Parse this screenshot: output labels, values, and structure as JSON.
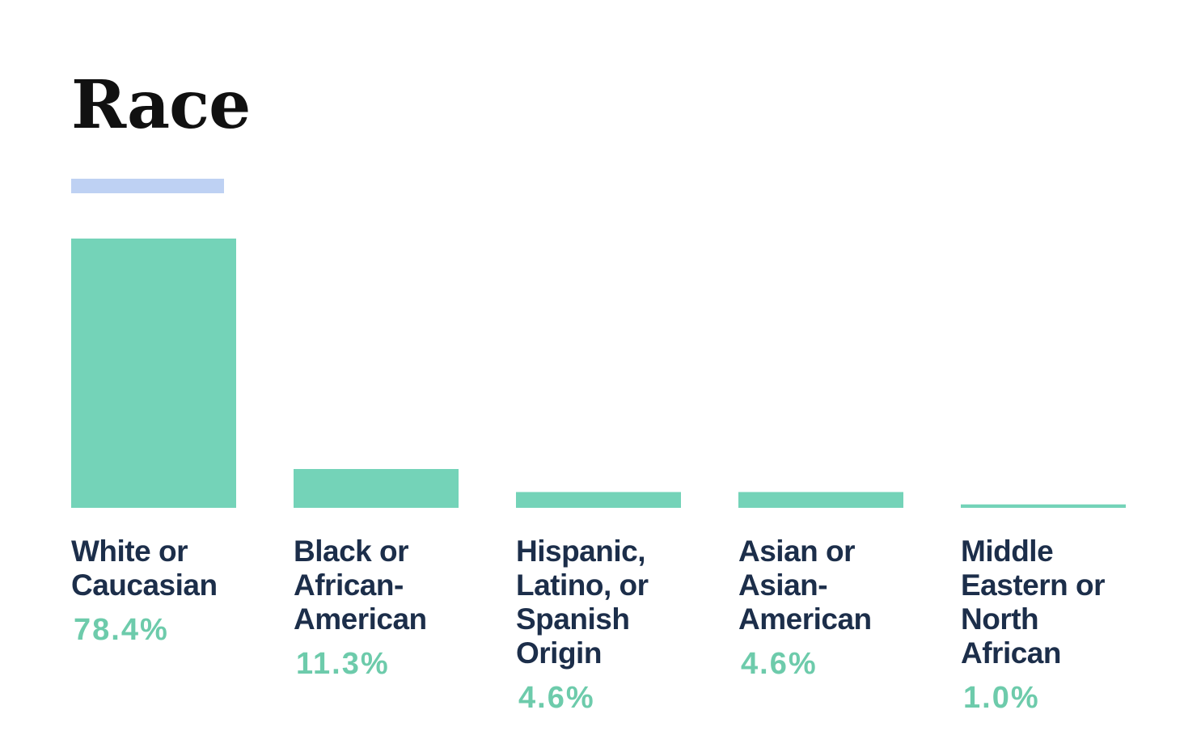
{
  "colors": {
    "bar": "#74d3b8",
    "accent": "#bed1f3",
    "label": "#1c2e4a",
    "value": "#6dcbab"
  },
  "chart_data": {
    "type": "bar",
    "title": "Race",
    "categories": [
      "White or\nCaucasian",
      "Black or\nAfrican-\nAmerican",
      "Hispanic,\nLatino, or\nSpanish\nOrigin",
      "Asian or\nAsian-\nAmerican",
      "Middle\nEastern or\nNorth\nAfrican"
    ],
    "values": [
      78.4,
      11.3,
      4.6,
      4.6,
      1.0
    ],
    "value_labels": [
      "78.4%",
      "11.3%",
      "4.6%",
      "4.6%",
      "1.0%"
    ],
    "xlabel": "",
    "ylabel": "",
    "ylim": [
      0,
      78.4
    ],
    "grid": false,
    "legend": "none"
  }
}
